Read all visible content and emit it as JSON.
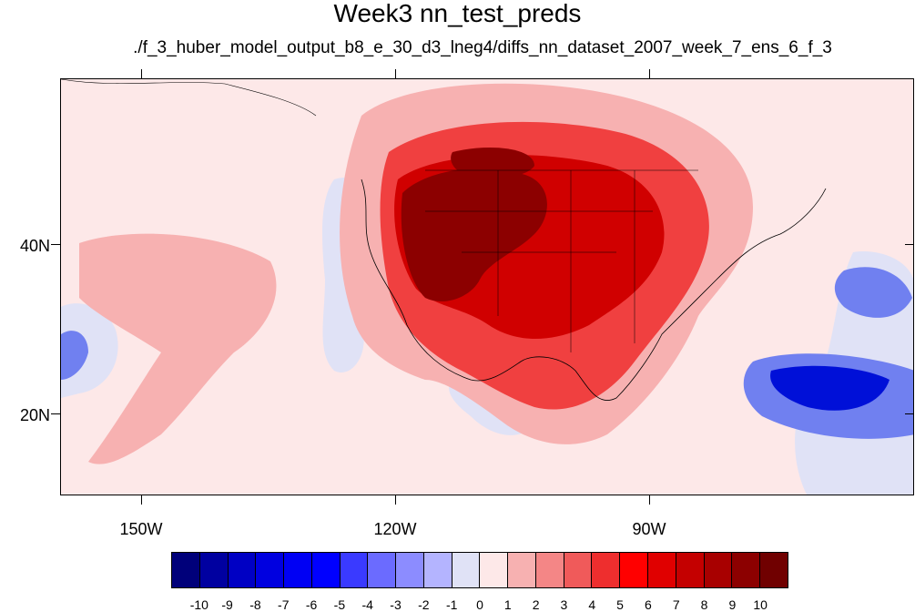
{
  "title": "Week3 nn_test_preds",
  "subtitle": "./f_3_huber_model_output_b8_e_30_d3_lneg4/diffs_nn_dataset_2007_week_7_ens_6_f_3",
  "map": {
    "lat_labels": [
      "40N",
      "20N"
    ],
    "lon_labels": [
      "150W",
      "120W",
      "90W"
    ],
    "colors": {
      "background": "#fde8e8",
      "light_blue": "#e0e2f6",
      "blue": "#7080f0",
      "deep_blue": "#0010d8",
      "light_red": "#f7b1b1",
      "red": "#f04040",
      "dark_red": "#d00000",
      "darkest_red": "#8c0000"
    }
  },
  "colorbar": {
    "labels": [
      "-10",
      "-9",
      "-8",
      "-7",
      "-6",
      "-5",
      "-4",
      "-3",
      "-2",
      "-1",
      "0",
      "1",
      "2",
      "3",
      "4",
      "5",
      "6",
      "7",
      "8",
      "9",
      "10"
    ],
    "colors": [
      "#00007a",
      "#0000a0",
      "#0000c4",
      "#0000e0",
      "#0000f4",
      "#0000ff",
      "#3a3aff",
      "#6b6bff",
      "#8c8cff",
      "#b4b4ff",
      "#e0e2f6",
      "#fde8e8",
      "#f7b1b1",
      "#f48686",
      "#f05a5a",
      "#ee2e2e",
      "#ff0000",
      "#e00000",
      "#c40000",
      "#a80000",
      "#8c0000",
      "#700000"
    ]
  }
}
